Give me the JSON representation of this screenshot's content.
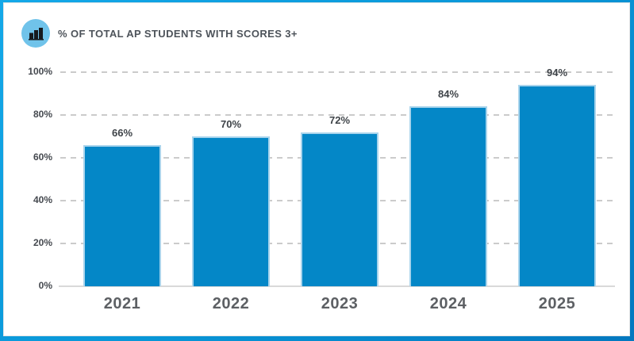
{
  "header": {
    "title": "% OF TOTAL AP STUDENTS WITH SCORES 3+",
    "icon": "bar-chart-icon"
  },
  "chart_data": {
    "type": "bar",
    "title": "% OF TOTAL AP STUDENTS WITH SCORES 3+",
    "categories": [
      "2021",
      "2022",
      "2023",
      "2024",
      "2025"
    ],
    "values": [
      66,
      70,
      72,
      84,
      94
    ],
    "value_labels": [
      "66%",
      "70%",
      "72%",
      "84%",
      "94%"
    ],
    "xlabel": "",
    "ylabel": "",
    "ylim": [
      0,
      100
    ],
    "yticks": [
      "0%",
      "20%",
      "40%",
      "60%",
      "80%",
      "100%"
    ],
    "grid": "horizontal-dashed",
    "legend": "none",
    "colors": {
      "bar_fill": "#0487C7",
      "bar_stroke": "#A9D4EC",
      "gridline": "#CBCBCB",
      "axis_baseline": "#D9D9D9",
      "tick_text": "#45494F",
      "value_text": "#3E4348",
      "category_text": "#5D6064",
      "title_text": "#4D535A",
      "frame_border_top": "#14A8E8",
      "frame_border_bottom": "#0378BF",
      "icon_circle": "#70C3EA",
      "icon_glyph": "#16191D"
    }
  }
}
